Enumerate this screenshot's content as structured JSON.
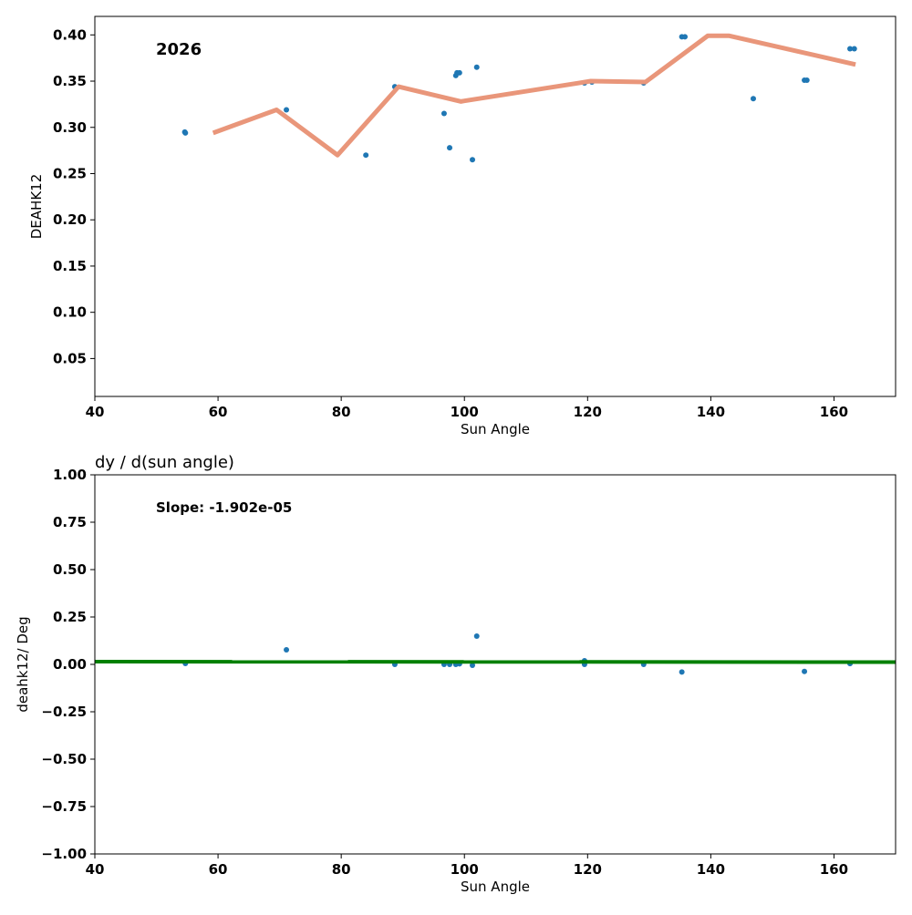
{
  "chart_data": [
    {
      "type": "scatter",
      "title": "",
      "annotation": "2026",
      "xlabel": "Sun Angle",
      "ylabel": "DEAHK12",
      "xlim": [
        40,
        170
      ],
      "ylim": [
        0.009,
        0.42
      ],
      "xticks": [
        40,
        60,
        80,
        100,
        120,
        140,
        160
      ],
      "yticks": [
        0.05,
        0.1,
        0.15,
        0.2,
        0.25,
        0.3,
        0.35,
        0.4
      ],
      "ytick_labels": [
        "0.05",
        "0.10",
        "0.15",
        "0.20",
        "0.25",
        "0.30",
        "0.35",
        "0.40"
      ],
      "colors": {
        "points": "#1f77b4",
        "line": "#e9967a"
      },
      "points": {
        "x": [
          54.6,
          54.7,
          71.1,
          84.0,
          88.7,
          96.7,
          97.6,
          98.6,
          98.8,
          99.2,
          101.3,
          102.0,
          119.5,
          120.7,
          129.1,
          135.3,
          135.8,
          146.9,
          155.2,
          155.6,
          162.6,
          163.3
        ],
        "y": [
          0.295,
          0.294,
          0.319,
          0.27,
          0.344,
          0.315,
          0.278,
          0.356,
          0.359,
          0.359,
          0.265,
          0.365,
          0.348,
          0.349,
          0.348,
          0.398,
          0.398,
          0.331,
          0.351,
          0.351,
          0.385,
          0.385
        ]
      },
      "line": {
        "x": [
          59.2,
          69.5,
          79.4,
          89.3,
          99.4,
          120.5,
          129.4,
          139.5,
          143.0,
          163.5
        ],
        "y": [
          0.294,
          0.319,
          0.27,
          0.344,
          0.328,
          0.35,
          0.349,
          0.399,
          0.399,
          0.368
        ]
      }
    },
    {
      "type": "scatter",
      "title": "dy / d(sun angle)",
      "annotation": "Slope: -1.902e-05",
      "xlabel": "Sun Angle",
      "ylabel": "deahk12/ Deg",
      "xlim": [
        40,
        170
      ],
      "ylim": [
        -1.0,
        1.0
      ],
      "xticks": [
        40,
        60,
        80,
        100,
        120,
        140,
        160
      ],
      "yticks": [
        -1.0,
        -0.75,
        -0.5,
        -0.25,
        0.0,
        0.25,
        0.5,
        0.75,
        1.0
      ],
      "ytick_labels": [
        "−1.00",
        "−0.75",
        "−0.50",
        "−0.25",
        "0.00",
        "0.25",
        "0.50",
        "0.75",
        "1.00"
      ],
      "colors": {
        "points": "#1f77b4",
        "line": "#008000"
      },
      "points": {
        "x": [
          54.7,
          71.1,
          88.7,
          96.7,
          97.6,
          98.6,
          99.2,
          101.3,
          102.0,
          119.5,
          119.5,
          129.1,
          135.3,
          155.2,
          162.6
        ],
        "y": [
          0.005,
          0.077,
          0.0,
          0.0,
          0.0,
          0.0,
          0.003,
          -0.005,
          0.149,
          0.019,
          0.0,
          0.0,
          -0.04,
          -0.037,
          0.004
        ]
      },
      "line": {
        "x": [
          40,
          170
        ],
        "y": [
          0.0145,
          0.012
        ]
      }
    }
  ]
}
